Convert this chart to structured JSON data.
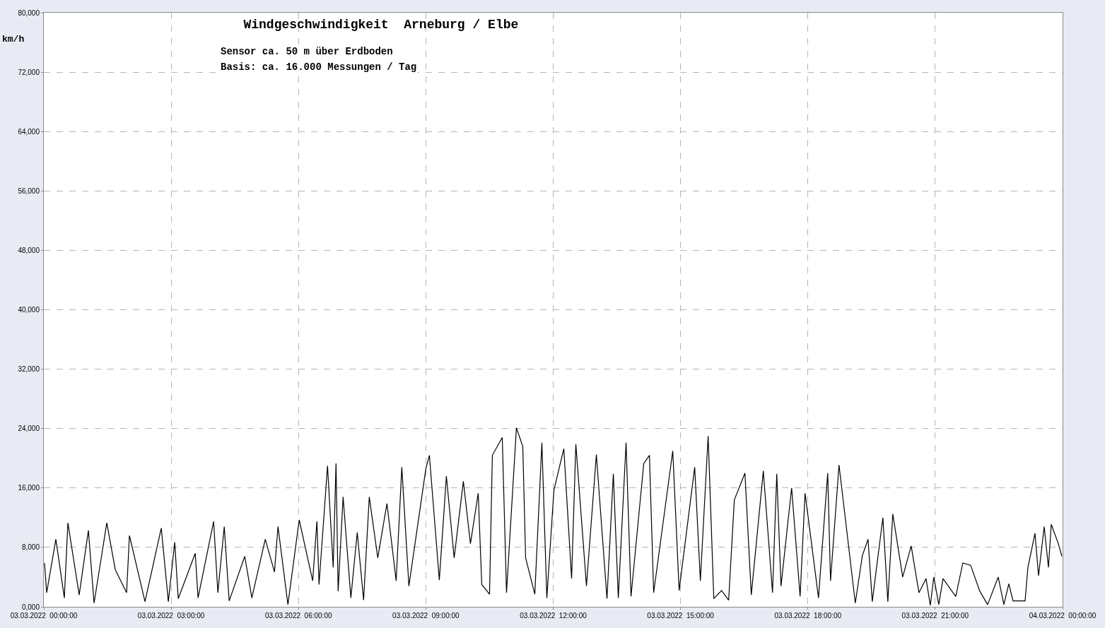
{
  "chart_data": {
    "type": "line",
    "title": "Windgeschwindigkeit  Arneburg / Elbe",
    "subtitle": "Sensor ca. 50 m über Erdboden",
    "annotations": [
      "Basis: ca. 16.000 Messungen / Tag"
    ],
    "ylabel": "km/h",
    "x": [
      "2022-03-03T00:01",
      "2022-03-03T00:04",
      "2022-03-03T00:17",
      "2022-03-03T00:29",
      "2022-03-03T00:34",
      "2022-03-03T00:50",
      "2022-03-03T01:03",
      "2022-03-03T01:11",
      "2022-03-03T01:29",
      "2022-03-03T01:41",
      "2022-03-03T01:57",
      "2022-03-03T02:01",
      "2022-03-03T02:23",
      "2022-03-03T02:46",
      "2022-03-03T02:56",
      "2022-03-03T03:05",
      "2022-03-03T03:10",
      "2022-03-03T03:34",
      "2022-03-03T03:38",
      "2022-03-03T04:00",
      "2022-03-03T04:06",
      "2022-03-03T04:15",
      "2022-03-03T04:22",
      "2022-03-03T04:44",
      "2022-03-03T04:54",
      "2022-03-03T05:13",
      "2022-03-03T05:26",
      "2022-03-03T05:31",
      "2022-03-03T05:45",
      "2022-03-03T06:01",
      "2022-03-03T06:20",
      "2022-03-03T06:26",
      "2022-03-03T06:29",
      "2022-03-03T06:41",
      "2022-03-03T06:49",
      "2022-03-03T06:53",
      "2022-03-03T06:56",
      "2022-03-03T07:03",
      "2022-03-03T07:14",
      "2022-03-03T07:23",
      "2022-03-03T07:32",
      "2022-03-03T07:40",
      "2022-03-03T07:52",
      "2022-03-03T08:05",
      "2022-03-03T08:18",
      "2022-03-03T08:26",
      "2022-03-03T08:36",
      "2022-03-03T09:00",
      "2022-03-03T09:05",
      "2022-03-03T09:19",
      "2022-03-03T09:29",
      "2022-03-03T09:40",
      "2022-03-03T09:53",
      "2022-03-03T10:03",
      "2022-03-03T10:14",
      "2022-03-03T10:19",
      "2022-03-03T10:30",
      "2022-03-03T10:34",
      "2022-03-03T10:48",
      "2022-03-03T10:54",
      "2022-03-03T11:08",
      "2022-03-03T11:17",
      "2022-03-03T11:21",
      "2022-03-03T11:34",
      "2022-03-03T11:44",
      "2022-03-03T11:51",
      "2022-03-03T12:01",
      "2022-03-03T12:15",
      "2022-03-03T12:26",
      "2022-03-03T12:32",
      "2022-03-03T12:47",
      "2022-03-03T13:01",
      "2022-03-03T13:16",
      "2022-03-03T13:25",
      "2022-03-03T13:32",
      "2022-03-03T13:43",
      "2022-03-03T13:50",
      "2022-03-03T14:08",
      "2022-03-03T14:16",
      "2022-03-03T14:22",
      "2022-03-03T14:49",
      "2022-03-03T14:58",
      "2022-03-03T15:20",
      "2022-03-03T15:28",
      "2022-03-03T15:39",
      "2022-03-03T15:47",
      "2022-03-03T15:58",
      "2022-03-03T16:08",
      "2022-03-03T16:16",
      "2022-03-03T16:31",
      "2022-03-03T16:40",
      "2022-03-03T16:57",
      "2022-03-03T17:10",
      "2022-03-03T17:16",
      "2022-03-03T17:22",
      "2022-03-03T17:37",
      "2022-03-03T17:49",
      "2022-03-03T17:56",
      "2022-03-03T18:15",
      "2022-03-03T18:28",
      "2022-03-03T18:32",
      "2022-03-03T18:44",
      "2022-03-03T19:07",
      "2022-03-03T19:17",
      "2022-03-03T19:25",
      "2022-03-03T19:31",
      "2022-03-03T19:46",
      "2022-03-03T19:53",
      "2022-03-03T20:00",
      "2022-03-03T20:14",
      "2022-03-03T20:26",
      "2022-03-03T20:37",
      "2022-03-03T20:47",
      "2022-03-03T20:53",
      "2022-03-03T20:58",
      "2022-03-03T21:05",
      "2022-03-03T21:11",
      "2022-03-03T21:29",
      "2022-03-03T21:39",
      "2022-03-03T21:50",
      "2022-03-03T22:03",
      "2022-03-03T22:14",
      "2022-03-03T22:29",
      "2022-03-03T22:37",
      "2022-03-03T22:44",
      "2022-03-03T22:50",
      "2022-03-03T23:07",
      "2022-03-03T23:11",
      "2022-03-03T23:21",
      "2022-03-03T23:26",
      "2022-03-03T23:34",
      "2022-03-03T23:40",
      "2022-03-03T23:44",
      "2022-03-03T23:54",
      "2022-03-03T23:59"
    ],
    "series": [
      {
        "color": "#000000",
        "values": [
          5900,
          1900,
          9100,
          1200,
          11300,
          1600,
          10300,
          500,
          11300,
          5000,
          1900,
          9600,
          700,
          10600,
          700,
          8700,
          1100,
          7200,
          1200,
          11500,
          1900,
          10800,
          800,
          6800,
          1200,
          9100,
          4700,
          10800,
          300,
          11700,
          3500,
          11500,
          3000,
          19000,
          5300,
          19300,
          2100,
          14800,
          1200,
          10000,
          900,
          14800,
          6600,
          13900,
          3500,
          18800,
          2800,
          18600,
          20400,
          3600,
          17600,
          6600,
          16900,
          8500,
          15300,
          3000,
          1700,
          20400,
          22800,
          1900,
          24100,
          21600,
          6600,
          1700,
          22100,
          1200,
          15700,
          21300,
          3800,
          21900,
          2800,
          20500,
          1100,
          17900,
          1200,
          22100,
          1400,
          19300,
          20400,
          1900,
          21000,
          2200,
          18800,
          3500,
          23000,
          1100,
          2200,
          900,
          14400,
          18000,
          1600,
          18300,
          1900,
          17900,
          2800,
          16000,
          1400,
          15300,
          1200,
          18000,
          3500,
          19100,
          500,
          6900,
          9100,
          700,
          12000,
          700,
          12500,
          4000,
          8200,
          1900,
          3800,
          200,
          4000,
          300,
          3800,
          1400,
          5900,
          5600,
          2100,
          300,
          4000,
          300,
          3100,
          800,
          800,
          5300,
          9900,
          4200,
          10800,
          5300,
          11100,
          8500,
          6800
        ]
      }
    ],
    "xlim": [
      "2022-03-03T00:00",
      "2022-03-04T00:00"
    ],
    "xticks": [
      {
        "value": "2022-03-03T00:00",
        "label": "03.03.2022  00:00:00"
      },
      {
        "value": "2022-03-03T03:00",
        "label": "03.03.2022  03:00:00"
      },
      {
        "value": "2022-03-03T06:00",
        "label": "03.03.2022  06:00:00"
      },
      {
        "value": "2022-03-03T09:00",
        "label": "03.03.2022  09:00:00"
      },
      {
        "value": "2022-03-03T12:00",
        "label": "03.03.2022  12:00:00"
      },
      {
        "value": "2022-03-03T15:00",
        "label": "03.03.2022  15:00:00"
      },
      {
        "value": "2022-03-03T18:00",
        "label": "03.03.2022  18:00:00"
      },
      {
        "value": "2022-03-03T21:00",
        "label": "03.03.2022  21:00:00"
      },
      {
        "value": "2022-03-04T00:00",
        "label": "04.03.2022  00:00:00"
      }
    ],
    "ylim": [
      0,
      80000
    ],
    "yticks": [
      {
        "value": 0,
        "label": "0,000"
      },
      {
        "value": 8000,
        "label": "8,000"
      },
      {
        "value": 16000,
        "label": "16,000"
      },
      {
        "value": 24000,
        "label": "24,000"
      },
      {
        "value": 32000,
        "label": "32,000"
      },
      {
        "value": 40000,
        "label": "40,000"
      },
      {
        "value": 48000,
        "label": "48,000"
      },
      {
        "value": 56000,
        "label": "56,000"
      },
      {
        "value": 64000,
        "label": "64,000"
      },
      {
        "value": 72000,
        "label": "72,000"
      },
      {
        "value": 80000,
        "label": "80,000"
      }
    ],
    "grid": true,
    "marker": "none",
    "line_style": "solid"
  }
}
